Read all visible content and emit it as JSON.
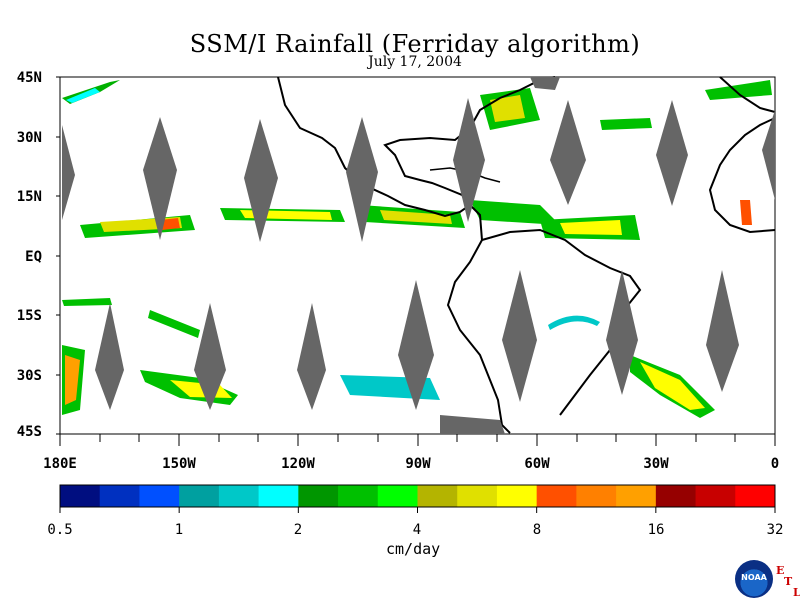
{
  "title": "SSM/I Rainfall (Ferriday algorithm)",
  "date": "July 17, 2004",
  "lat_labels": [
    "45N",
    "30N",
    "15N",
    "EQ",
    "15S",
    "30S",
    "45S"
  ],
  "lon_labels": [
    "180E",
    "150W",
    "120W",
    "90W",
    "60W",
    "30W",
    "0"
  ],
  "colorbar": {
    "colors": [
      "#000e80",
      "#0030c0",
      "#0050ff",
      "#00a0a0",
      "#00c8c8",
      "#00ffff",
      "#009600",
      "#00c000",
      "#00ff00",
      "#b4b400",
      "#e0e000",
      "#ffff00",
      "#ff5000",
      "#ff8000",
      "#ffa000",
      "#960000",
      "#c80000",
      "#ff0000"
    ],
    "tick_labels": [
      "0.5",
      "1",
      "2",
      "4",
      "8",
      "16",
      "32"
    ],
    "unit": "cm/day"
  },
  "logo": {
    "text": "NOAA",
    "letters": [
      "E",
      "T",
      "L"
    ]
  }
}
